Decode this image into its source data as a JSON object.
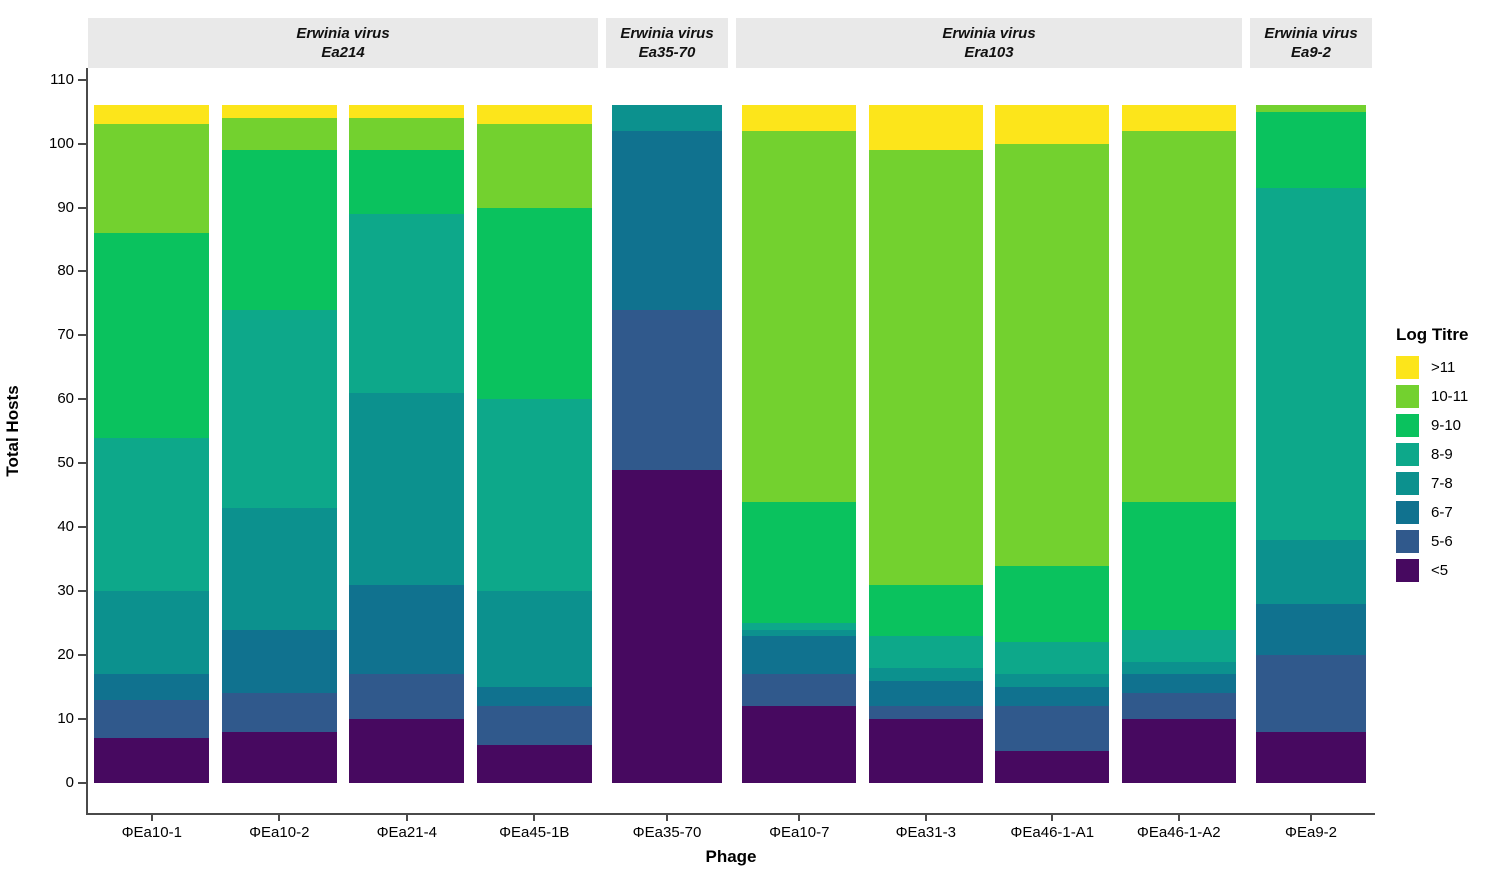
{
  "chart_data": {
    "type": "stacked-bar",
    "xlabel": "Phage",
    "ylabel": "Total Hosts",
    "ylim": [
      0,
      110
    ],
    "yticks": [
      0,
      10,
      20,
      30,
      40,
      50,
      60,
      70,
      80,
      90,
      100,
      110
    ],
    "grid": false,
    "legend_title": "Log Titre",
    "legend_position": "right",
    "stack_order_bottom_to_top": [
      "<5",
      "5-6",
      "6-7",
      "7-8",
      "8-9",
      "9-10",
      "10-11",
      ">11"
    ],
    "series": [
      {
        "name": ">11",
        "color": "#fce51b"
      },
      {
        "name": "10-11",
        "color": "#73d12f"
      },
      {
        "name": "9-10",
        "color": "#0ac25e"
      },
      {
        "name": "8-9",
        "color": "#0da88a"
      },
      {
        "name": "7-8",
        "color": "#0c918e"
      },
      {
        "name": "6-7",
        "color": "#10728f"
      },
      {
        "name": "5-6",
        "color": "#30598c"
      },
      {
        "name": "<5",
        "color": "#470960"
      }
    ],
    "facets": [
      {
        "label_line1": "Erwinia virus",
        "label_line2": "Ea214",
        "bars": [
          {
            "label": "ΦEa10-1",
            "segments": [
              7,
              6,
              4,
              13,
              24,
              32,
              17,
              3
            ]
          },
          {
            "label": "ΦEa10-2",
            "segments": [
              8,
              6,
              10,
              19,
              31,
              25,
              5,
              2
            ]
          },
          {
            "label": "ΦEa21-4",
            "segments": [
              10,
              7,
              14,
              30,
              28,
              10,
              5,
              2
            ]
          },
          {
            "label": "ΦEa45-1B",
            "segments": [
              6,
              6,
              3,
              15,
              30,
              30,
              13,
              3
            ]
          }
        ]
      },
      {
        "label_line1": "Erwinia virus",
        "label_line2": "Ea35-70",
        "bars": [
          {
            "label": "ΦEa35-70",
            "segments": [
              49,
              25,
              28,
              4,
              0,
              0,
              0,
              0
            ]
          }
        ]
      },
      {
        "label_line1": "Erwinia virus",
        "label_line2": "Era103",
        "bars": [
          {
            "label": "ΦEa10-7",
            "segments": [
              12,
              5,
              6,
              1,
              1,
              19,
              58,
              4
            ]
          },
          {
            "label": "ΦEa31-3",
            "segments": [
              10,
              2,
              4,
              2,
              5,
              8,
              68,
              7
            ]
          },
          {
            "label": "ΦEa46-1-A1",
            "segments": [
              5,
              7,
              3,
              2,
              5,
              12,
              66,
              6
            ]
          },
          {
            "label": "ΦEa46-1-A2",
            "segments": [
              10,
              4,
              3,
              2,
              5,
              20,
              58,
              4
            ]
          }
        ]
      },
      {
        "label_line1": "Erwinia virus",
        "label_line2": "Ea9-2",
        "bars": [
          {
            "label": "ΦEa9-2",
            "segments": [
              8,
              12,
              8,
              10,
              55,
              12,
              1,
              0
            ]
          }
        ]
      }
    ],
    "bar_total": 106
  }
}
